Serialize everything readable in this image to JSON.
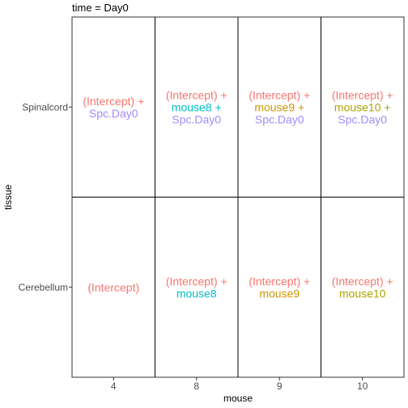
{
  "chart_data": {
    "type": "table",
    "title": "time = Day0",
    "xlabel": "mouse",
    "ylabel": "tissue",
    "x_categories": [
      "4",
      "8",
      "9",
      "10"
    ],
    "y_categories": [
      "Spinalcord",
      "Cerebellum"
    ],
    "colors": {
      "intercept": "#F8766D",
      "mouse8": "#00BFC4",
      "mouse9": "#CD9600",
      "mouse10": "#ABA300",
      "spc_day0": "#A58AFF"
    },
    "cells": [
      {
        "tissue": "Spinalcord",
        "mouse": "4",
        "lines": [
          {
            "text": "(Intercept) +",
            "color": "intercept"
          },
          {
            "text": "Spc.Day0",
            "color": "spc_day0"
          }
        ]
      },
      {
        "tissue": "Spinalcord",
        "mouse": "8",
        "lines": [
          {
            "text": "(Intercept) +",
            "color": "intercept"
          },
          {
            "text": "mouse8 +",
            "color": "mouse8"
          },
          {
            "text": "Spc.Day0",
            "color": "spc_day0"
          }
        ]
      },
      {
        "tissue": "Spinalcord",
        "mouse": "9",
        "lines": [
          {
            "text": "(Intercept) +",
            "color": "intercept"
          },
          {
            "text": "mouse9 +",
            "color": "mouse9"
          },
          {
            "text": "Spc.Day0",
            "color": "spc_day0"
          }
        ]
      },
      {
        "tissue": "Spinalcord",
        "mouse": "10",
        "lines": [
          {
            "text": "(Intercept) +",
            "color": "intercept"
          },
          {
            "text": "mouse10 +",
            "color": "mouse10"
          },
          {
            "text": "Spc.Day0",
            "color": "spc_day0"
          }
        ]
      },
      {
        "tissue": "Cerebellum",
        "mouse": "4",
        "lines": [
          {
            "text": "(Intercept)",
            "color": "intercept"
          }
        ]
      },
      {
        "tissue": "Cerebellum",
        "mouse": "8",
        "lines": [
          {
            "text": "(Intercept) +",
            "color": "intercept"
          },
          {
            "text": "mouse8",
            "color": "mouse8"
          }
        ]
      },
      {
        "tissue": "Cerebellum",
        "mouse": "9",
        "lines": [
          {
            "text": "(Intercept) +",
            "color": "intercept"
          },
          {
            "text": "mouse9",
            "color": "mouse9"
          }
        ]
      },
      {
        "tissue": "Cerebellum",
        "mouse": "10",
        "lines": [
          {
            "text": "(Intercept) +",
            "color": "intercept"
          },
          {
            "text": "mouse10",
            "color": "mouse10"
          }
        ]
      }
    ]
  }
}
